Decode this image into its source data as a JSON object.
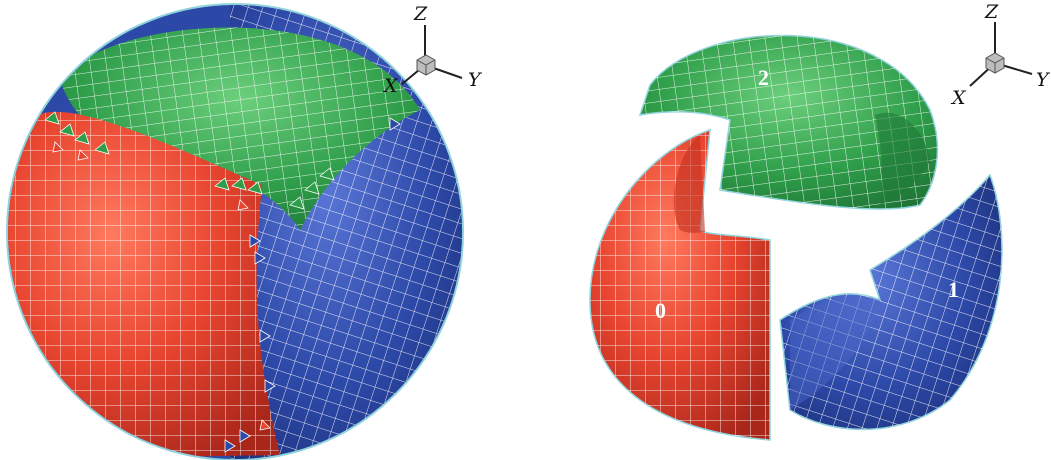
{
  "figure": {
    "left_panel": {
      "axes": {
        "z": "Z",
        "y": "Y",
        "x": "X"
      }
    },
    "right_panel": {
      "axes": {
        "z": "Z",
        "y": "Y",
        "x": "X"
      },
      "patch_labels": [
        "0",
        "1",
        "2"
      ]
    },
    "colors": {
      "red": "#e8452f",
      "green": "#2f9e4a",
      "blue": "#2d49a8",
      "grid": "#ffffff",
      "outline": "#8fd3dc"
    }
  }
}
